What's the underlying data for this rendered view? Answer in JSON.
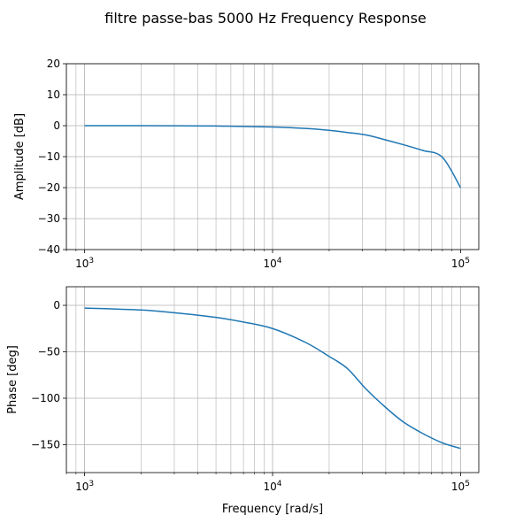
{
  "figure": {
    "title": "filtre passe-bas 5000 Hz Frequency Response"
  },
  "chart_data": [
    {
      "type": "line",
      "xlabel": "",
      "ylabel": "Amplitude [dB]",
      "xscale": "log",
      "xlim": [
        800,
        125000
      ],
      "ylim": [
        -40,
        20
      ],
      "yticks": [
        20,
        10,
        0,
        -10,
        -20,
        -30,
        -40
      ],
      "ytick_labels": [
        "20",
        "10",
        "0",
        "−10",
        "−20",
        "−30",
        "−40"
      ],
      "xticks": [
        1000,
        10000,
        100000
      ],
      "xtick_labels": [
        {
          "base": "10",
          "exp": "3"
        },
        {
          "base": "10",
          "exp": "4"
        },
        {
          "base": "10",
          "exp": "5"
        }
      ],
      "grid": true,
      "color": "#1f77b4",
      "series": [
        {
          "x": [
            1000,
            2000,
            5000,
            10000,
            15000,
            20000,
            25000,
            31400,
            40000,
            50000,
            63000,
            80000,
            100000
          ],
          "y": [
            -0.004,
            -0.017,
            -0.11,
            -0.42,
            -0.9,
            -1.5,
            -2.2,
            -3.0,
            -4.6,
            -6.2,
            -8.0,
            -10.2,
            -20.0
          ]
        }
      ]
    },
    {
      "type": "line",
      "xlabel": "Frequency [rad/s]",
      "ylabel": "Phase [deg]",
      "xscale": "log",
      "xlim": [
        800,
        125000
      ],
      "ylim": [
        -180,
        20
      ],
      "yticks": [
        0,
        -50,
        -100,
        -150
      ],
      "ytick_labels": [
        "0",
        "−50",
        "−100",
        "−150"
      ],
      "xticks": [
        1000,
        10000,
        100000
      ],
      "xtick_labels": [
        {
          "base": "10",
          "exp": "3"
        },
        {
          "base": "10",
          "exp": "4"
        },
        {
          "base": "10",
          "exp": "5"
        }
      ],
      "grid": true,
      "color": "#1f77b4",
      "series": [
        {
          "x": [
            1000,
            2000,
            3000,
            5000,
            7000,
            10000,
            15000,
            20000,
            25000,
            31400,
            40000,
            50000,
            63000,
            80000,
            100000
          ],
          "y": [
            -3,
            -5,
            -8,
            -13,
            -18,
            -25,
            -40,
            -55,
            -68,
            -90,
            -110,
            -126,
            -138,
            -148,
            -154
          ]
        }
      ]
    }
  ]
}
